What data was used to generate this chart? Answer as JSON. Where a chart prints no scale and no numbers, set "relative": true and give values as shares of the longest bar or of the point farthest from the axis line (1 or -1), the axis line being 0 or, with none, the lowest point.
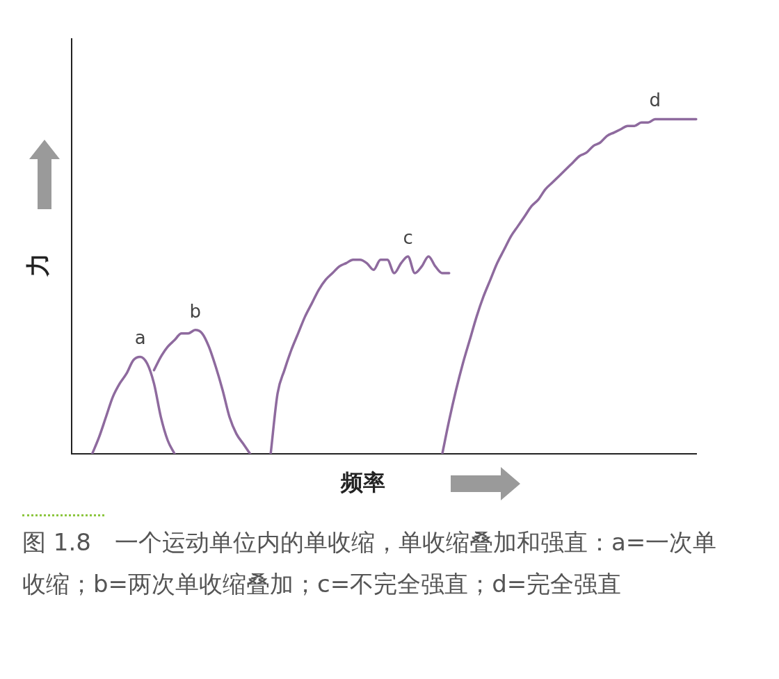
{
  "chart_data": {
    "type": "line",
    "relative": true,
    "xlabel": "频率",
    "ylabel": "力",
    "annotations": [
      "图 1.8　一个运动单位内的单收缩，单收缩叠加和强直：a=一次单收缩；b=两次单收缩叠加；c=不完全强直；d=完全强直"
    ],
    "categories": [
      null,
      null,
      null,
      null,
      null,
      null,
      null,
      null,
      null,
      null,
      null,
      null,
      null,
      null,
      null,
      null,
      null,
      null,
      null,
      null,
      null,
      null,
      null,
      null,
      null,
      null,
      null,
      null,
      null,
      null,
      null,
      null,
      null,
      null,
      null,
      null,
      null,
      null,
      null,
      null,
      null,
      null,
      null,
      null,
      null,
      null,
      null,
      null,
      null,
      null,
      null,
      null,
      null,
      null,
      null,
      null,
      null,
      null,
      null,
      null,
      null,
      null,
      null,
      null,
      null,
      null,
      null,
      null,
      null,
      null,
      null,
      null,
      null,
      null,
      null,
      null,
      null,
      null,
      null,
      null,
      null,
      null,
      null,
      null,
      null,
      null,
      null,
      null,
      null,
      null,
      null,
      null
    ],
    "series": [
      {
        "name": "a",
        "color": "#8e6a9e",
        "values": [
          null,
          null,
          null,
          0,
          0.05,
          0.11,
          0.17,
          0.21,
          0.24,
          0.28,
          0.29,
          0.27,
          0.21,
          0.11,
          0.04,
          0,
          null,
          null,
          null,
          null,
          null,
          null,
          null,
          null,
          null,
          null,
          null,
          null,
          null,
          null,
          null,
          null,
          null,
          null,
          null,
          null,
          null,
          null,
          null,
          null,
          null,
          null,
          null,
          null,
          null,
          null,
          null,
          null,
          null,
          null,
          null,
          null,
          null,
          null,
          null,
          null,
          null,
          null,
          null,
          null,
          null,
          null,
          null,
          null,
          null,
          null,
          null,
          null,
          null,
          null,
          null,
          null,
          null,
          null,
          null,
          null,
          null,
          null,
          null,
          null,
          null,
          null,
          null,
          null,
          null,
          null,
          null,
          null,
          null,
          null,
          null,
          null
        ]
      },
      {
        "name": "b",
        "color": "#8e6a9e",
        "values": [
          null,
          null,
          null,
          null,
          null,
          null,
          null,
          null,
          null,
          null,
          null,
          null,
          0.25,
          0.29,
          0.32,
          0.34,
          0.36,
          0.36,
          0.37,
          0.36,
          0.32,
          0.26,
          0.19,
          0.11,
          0.06,
          0.03,
          0,
          null,
          null,
          null,
          null,
          null,
          null,
          null,
          null,
          null,
          null,
          null,
          null,
          null,
          null,
          null,
          null,
          null,
          null,
          null,
          null,
          null,
          null,
          null,
          null,
          null,
          null,
          null,
          null,
          null,
          null,
          null,
          null,
          null,
          null,
          null,
          null,
          null,
          null,
          null,
          null,
          null,
          null,
          null,
          null,
          null,
          null,
          null,
          null,
          null,
          null,
          null,
          null,
          null,
          null,
          null,
          null,
          null,
          null,
          null,
          null,
          null,
          null,
          null,
          null,
          null
        ]
      },
      {
        "name": "c",
        "color": "#8e6a9e",
        "values": [
          null,
          null,
          null,
          null,
          null,
          null,
          null,
          null,
          null,
          null,
          null,
          null,
          null,
          null,
          null,
          null,
          null,
          null,
          null,
          null,
          null,
          null,
          null,
          null,
          null,
          null,
          null,
          null,
          null,
          0,
          0.18,
          0.25,
          0.31,
          0.36,
          0.41,
          0.45,
          0.49,
          0.52,
          0.54,
          0.56,
          0.57,
          0.58,
          0.58,
          0.57,
          0.55,
          0.58,
          0.58,
          0.54,
          0.57,
          0.59,
          0.54,
          0.56,
          0.59,
          0.56,
          0.54,
          0.54,
          null,
          null,
          null,
          null,
          null,
          null,
          null,
          null,
          null,
          null,
          null,
          null,
          null,
          null,
          null,
          null,
          null,
          null,
          null,
          null,
          null,
          null,
          null,
          null,
          null,
          null,
          null,
          null,
          null,
          null,
          null,
          null,
          null,
          null,
          null,
          null
        ]
      },
      {
        "name": "d",
        "color": "#8e6a9e",
        "values": [
          null,
          null,
          null,
          null,
          null,
          null,
          null,
          null,
          null,
          null,
          null,
          null,
          null,
          null,
          null,
          null,
          null,
          null,
          null,
          null,
          null,
          null,
          null,
          null,
          null,
          null,
          null,
          null,
          null,
          null,
          null,
          null,
          null,
          null,
          null,
          null,
          null,
          null,
          null,
          null,
          null,
          null,
          null,
          null,
          null,
          null,
          null,
          null,
          null,
          null,
          null,
          null,
          null,
          null,
          0,
          0.1,
          0.19,
          0.27,
          0.34,
          0.41,
          0.47,
          0.52,
          0.57,
          0.61,
          0.65,
          0.68,
          0.71,
          0.74,
          0.76,
          0.79,
          0.81,
          0.83,
          0.85,
          0.87,
          0.89,
          0.9,
          0.92,
          0.93,
          0.95,
          0.96,
          0.97,
          0.98,
          0.98,
          0.99,
          0.99,
          1,
          1,
          1,
          1,
          1,
          1,
          1
        ]
      }
    ]
  }
}
